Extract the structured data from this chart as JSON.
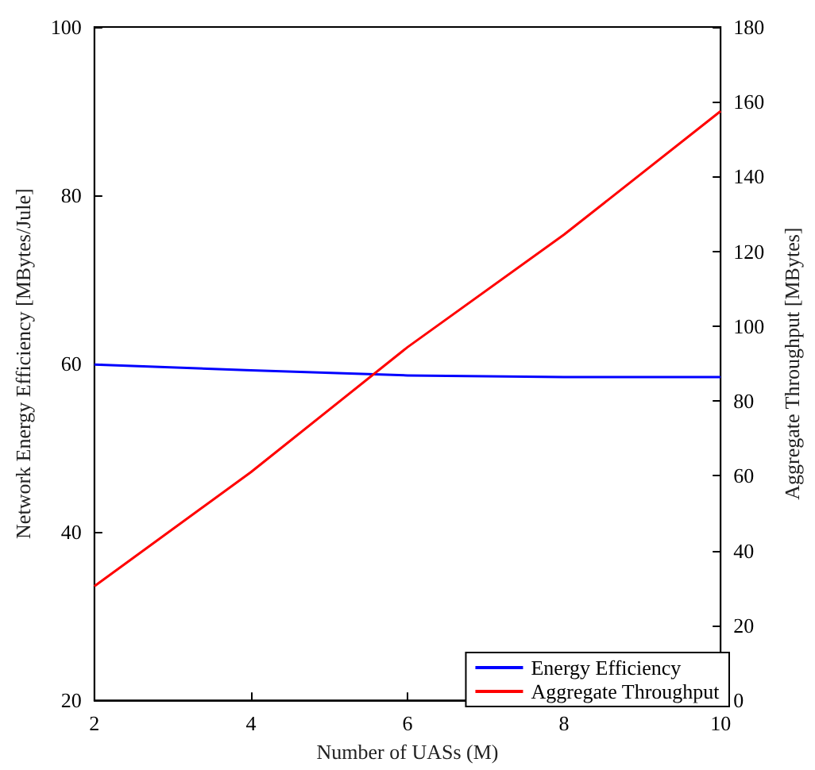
{
  "chart_data": {
    "type": "line",
    "xlabel": "Number of UASs (M)",
    "ylabel": "Network Energy Efficiency [MBytes/Jule]",
    "y2label": "Aggregate Throughput [MBytes]",
    "x": [
      2,
      4,
      6,
      8,
      10
    ],
    "series": [
      {
        "name": "Energy Efficiency",
        "color": "#0000ff",
        "values": [
          59.9,
          59.2,
          58.6,
          58.4,
          58.4
        ]
      },
      {
        "name": "Aggregate Throughput",
        "color": "#ff0000",
        "axis": "y2",
        "values": [
          30.5,
          61,
          94.4,
          124.5,
          157.5
        ]
      }
    ],
    "xlim": [
      2,
      10
    ],
    "xticks": [
      2,
      4,
      6,
      8,
      10
    ],
    "ylim": [
      20,
      100
    ],
    "yticks": [
      20,
      40,
      60,
      80,
      100
    ],
    "y2lim": [
      0,
      180
    ],
    "y2ticks": [
      0,
      20,
      40,
      60,
      80,
      100,
      120,
      140,
      160,
      180
    ],
    "grid": false,
    "legend": "bottom right",
    "marker": "none",
    "line_style": "solid"
  }
}
